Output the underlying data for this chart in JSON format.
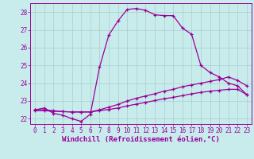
{
  "xlabel": "Windchill (Refroidissement éolien,°C)",
  "bg_color": "#c8ecec",
  "line_color": "#990099",
  "grid_color": "#aacccc",
  "xlim": [
    -0.5,
    23.5
  ],
  "ylim": [
    21.7,
    28.5
  ],
  "xticks": [
    0,
    1,
    2,
    3,
    4,
    5,
    6,
    7,
    8,
    9,
    10,
    11,
    12,
    13,
    14,
    15,
    16,
    17,
    18,
    19,
    20,
    21,
    22,
    23
  ],
  "yticks": [
    22,
    23,
    24,
    25,
    26,
    27,
    28
  ],
  "curve1_x": [
    0,
    1,
    2,
    3,
    4,
    5,
    6,
    7,
    8,
    9,
    10,
    11,
    12,
    13,
    14,
    15,
    16,
    17,
    18,
    19,
    20,
    21,
    22,
    23
  ],
  "curve1_y": [
    22.5,
    22.6,
    22.3,
    22.2,
    22.0,
    21.85,
    22.25,
    24.9,
    26.7,
    27.5,
    28.15,
    28.2,
    28.1,
    27.85,
    27.8,
    27.8,
    27.1,
    26.75,
    25.0,
    24.6,
    24.35,
    24.0,
    23.85,
    23.35
  ],
  "curve2_x": [
    0,
    1,
    2,
    3,
    4,
    5,
    6,
    7,
    8,
    9,
    10,
    11,
    12,
    13,
    14,
    15,
    16,
    17,
    18,
    19,
    20,
    21,
    22,
    23
  ],
  "curve2_y": [
    22.5,
    22.5,
    22.45,
    22.4,
    22.38,
    22.38,
    22.38,
    22.5,
    22.65,
    22.8,
    23.0,
    23.15,
    23.28,
    23.4,
    23.55,
    23.65,
    23.8,
    23.9,
    24.0,
    24.1,
    24.2,
    24.35,
    24.15,
    23.85
  ],
  "curve3_x": [
    0,
    1,
    2,
    3,
    4,
    5,
    6,
    7,
    8,
    9,
    10,
    11,
    12,
    13,
    14,
    15,
    16,
    17,
    18,
    19,
    20,
    21,
    22,
    23
  ],
  "curve3_y": [
    22.45,
    22.45,
    22.42,
    22.4,
    22.38,
    22.38,
    22.38,
    22.45,
    22.52,
    22.6,
    22.72,
    22.82,
    22.92,
    23.02,
    23.12,
    23.2,
    23.3,
    23.4,
    23.48,
    23.55,
    23.6,
    23.65,
    23.65,
    23.35
  ],
  "marker": "+",
  "markersize": 3.5,
  "linewidth": 0.9,
  "xlabel_fontsize": 6.5,
  "tick_fontsize": 5.5,
  "tick_color": "#990099",
  "label_color": "#990099",
  "axis_color": "#990099"
}
